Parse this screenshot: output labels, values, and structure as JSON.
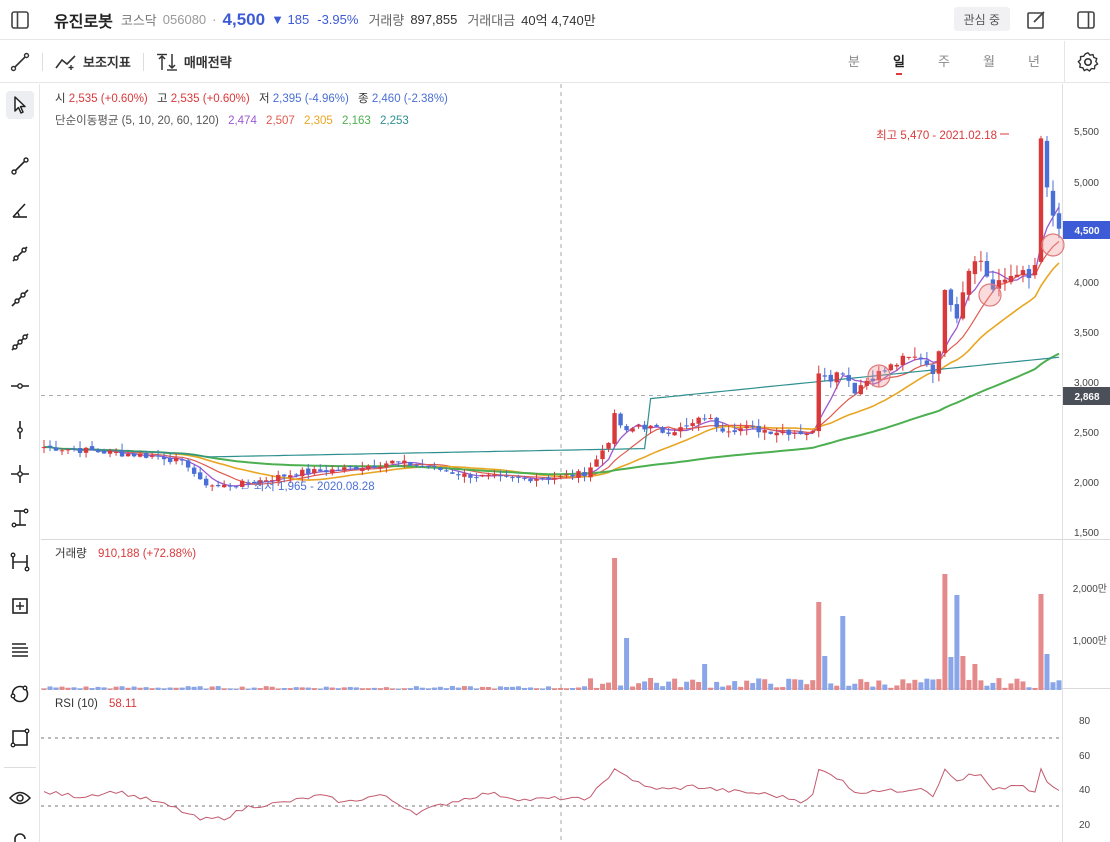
{
  "header": {
    "name": "유진로봇",
    "market": "코스닥",
    "code": "056080",
    "price": "4,500",
    "change": "▼ 185",
    "change_pct": "-3.95%",
    "volume_label": "거래량",
    "volume": "897,855",
    "amount_label": "거래대금",
    "amount": "40억 4,740만",
    "interest_button": "관심 중"
  },
  "toolbar": {
    "indicators_label": "보조지표",
    "strategy_label": "매매전략",
    "periods": [
      "분",
      "일",
      "주",
      "월",
      "년"
    ],
    "active_period": "일"
  },
  "price_legend": {
    "open_lbl": "시",
    "open": "2,535 (+0.60%)",
    "high_lbl": "고",
    "high": "2,535 (+0.60%)",
    "low_lbl": "저",
    "low": "2,395 (-4.96%)",
    "close_lbl": "종",
    "close": "2,460 (-2.38%)"
  },
  "ma_legend": {
    "label": "단순이동평균 (5, 10, 20, 60, 120)",
    "values": [
      "2,474",
      "2,507",
      "2,305",
      "2,163",
      "2,253"
    ],
    "colors": [
      "#9b59d0",
      "#e05a4e",
      "#e8a623",
      "#4caf50",
      "#2f8f8f"
    ]
  },
  "annotations": {
    "high": "최고 5,470 - 2021.02.18",
    "low": "← 최저 1,965 - 2020.08.28"
  },
  "price_axis": {
    "ticks": [
      "5,500",
      "5,000",
      "4,500",
      "4,000",
      "3,500",
      "3,000",
      "2,500",
      "2,000",
      "1,500"
    ],
    "current_tag": "4,500",
    "crosshair_tag": "2,868"
  },
  "volume_legend": {
    "label": "거래량",
    "value": "910,188 (+72.88%)"
  },
  "volume_axis": {
    "ticks": [
      "2,000만",
      "1,000만"
    ]
  },
  "rsi_legend": {
    "label": "RSI (10)",
    "value": "58.11"
  },
  "rsi_axis": {
    "ticks": [
      "80",
      "60",
      "40",
      "20"
    ]
  },
  "colors": {
    "up": "#d9393b",
    "down": "#4a6fd6",
    "accent_blue": "#3d5bd6"
  }
}
